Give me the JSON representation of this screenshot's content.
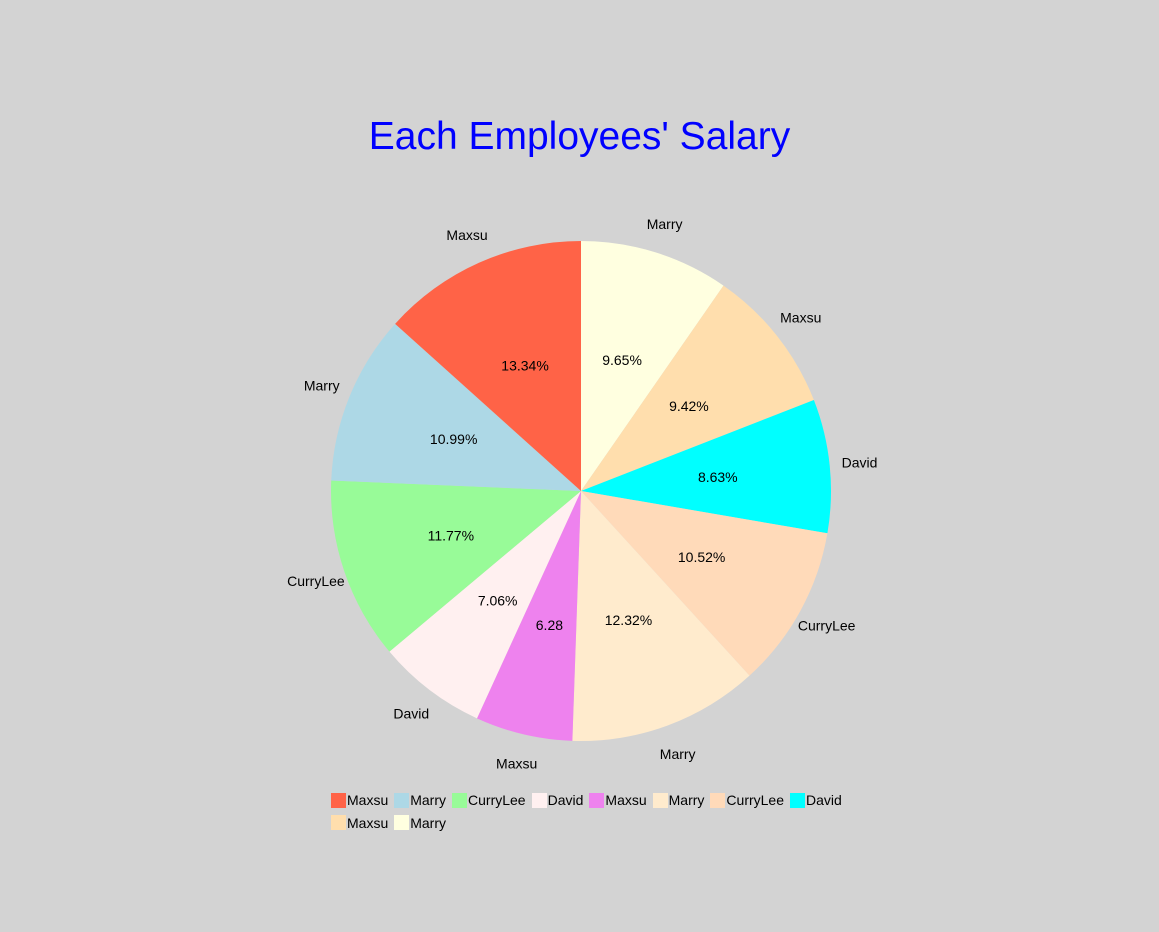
{
  "chart_data": {
    "type": "pie",
    "title": "Each Employees' Salary",
    "start_angle_deg": 90,
    "direction": "clockwise",
    "legend_position": "bottom",
    "slices": [
      {
        "label": "Marry",
        "percent": 9.65,
        "percent_label": "9.65%",
        "color": "#ffffe0"
      },
      {
        "label": "Maxsu",
        "percent": 9.42,
        "percent_label": "9.42%",
        "color": "#ffdead"
      },
      {
        "label": "David",
        "percent": 8.63,
        "percent_label": "8.63%",
        "color": "#00ffff"
      },
      {
        "label": "CurryLee",
        "percent": 10.52,
        "percent_label": "10.52%",
        "color": "#ffdab9"
      },
      {
        "label": "Marry",
        "percent": 12.32,
        "percent_label": "12.32%",
        "color": "#ffebcd"
      },
      {
        "label": "Maxsu",
        "percent": 6.28,
        "percent_label": "6.28",
        "color": "#ee82ee"
      },
      {
        "label": "David",
        "percent": 7.06,
        "percent_label": "7.06%",
        "color": "#fff0f0"
      },
      {
        "label": "CurryLee",
        "percent": 11.77,
        "percent_label": "11.77%",
        "color": "#98fb98"
      },
      {
        "label": "Marry",
        "percent": 10.99,
        "percent_label": "10.99%",
        "color": "#add8e6"
      },
      {
        "label": "Maxsu",
        "percent": 13.34,
        "percent_label": "13.34%",
        "color": "#ff6347"
      }
    ],
    "legend": [
      {
        "label": "Maxsu",
        "color": "#ff6347"
      },
      {
        "label": "Marry",
        "color": "#add8e6"
      },
      {
        "label": "CurryLee",
        "color": "#98fb98"
      },
      {
        "label": "David",
        "color": "#fff0f0"
      },
      {
        "label": "Maxsu",
        "color": "#ee82ee"
      },
      {
        "label": "Marry",
        "color": "#ffebcd"
      },
      {
        "label": "CurryLee",
        "color": "#ffdab9"
      },
      {
        "label": "David",
        "color": "#00ffff"
      },
      {
        "label": "Maxsu",
        "color": "#ffdead"
      },
      {
        "label": "Marry",
        "color": "#ffffe0"
      }
    ]
  }
}
